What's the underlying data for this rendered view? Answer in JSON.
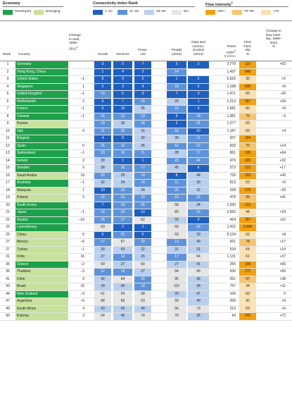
{
  "legend": {
    "economy": {
      "title": "Economy",
      "items": [
        {
          "label": "Developed",
          "color": "#1ea04b"
        },
        {
          "label": "Emerging",
          "color": "#c8e29e"
        }
      ]
    },
    "connectivity": {
      "title": "Connectivity index Rank",
      "items": [
        {
          "label": "1–10",
          "color": "#1f5fbf"
        },
        {
          "label": "11–25",
          "color": "#5f93d9"
        },
        {
          "label": "26–50",
          "color": "#b9cfee"
        },
        {
          "label": "51+",
          "color": "#e6e6e6"
        }
      ]
    },
    "intensity": {
      "title": "Flow intensity",
      "title_sup": "5",
      "items": [
        {
          "label": "100+",
          "color": "#f2a111"
        },
        {
          "label": "70–99",
          "color": "#f5c46c"
        },
        {
          "label": "<70",
          "color": "#fae2b4"
        }
      ]
    }
  },
  "headers": {
    "rank": "Rank",
    "country": "Country",
    "change": [
      "Change",
      "in rank,",
      "1995–",
      "2012",
      "1"
    ],
    "goods": "Goods",
    "services": "Services",
    "financial": [
      "Finan-",
      "cial"
    ],
    "people": [
      "People",
      "(2010)"
    ],
    "data": [
      "Data and",
      "commu-",
      "nication",
      "(2013)"
    ],
    "flows": [
      "Flows",
      "value",
      "4",
      "$ billion"
    ],
    "intensity": [
      "Flow",
      "inten-",
      "sity",
      "%"
    ],
    "intensity_change": [
      "Change in",
      "flow inten-",
      "sity, 1995–",
      "2012",
      "%"
    ]
  },
  "colors": {
    "developed": "#1ea04b",
    "emerging": "#c8e29e",
    "r1": "#1f5fbf",
    "r2": "#5f93d9",
    "r3": "#b9cfee",
    "r4": "#e6e6e6",
    "i1": "#f2a111",
    "i2": "#f5c46c",
    "i3": "#fae2b4"
  },
  "rows": [
    {
      "rank": "1",
      "country": "Germany",
      "dev": true,
      "change": "",
      "goods": "3",
      "services": "5",
      "financial": "7",
      "people": "5",
      "data": "2",
      "flows": "3,770",
      "intensity": "110",
      "ichange": "+53"
    },
    {
      "rank": "2",
      "country": "Hong Kong, China",
      "dev": true,
      "change": "",
      "goods": "1",
      "services": "4",
      "financial": "3",
      "people": "14",
      "data": "",
      "flows": "1,437",
      "intensity": "646",
      "ichange": ""
    },
    {
      "rank": "3",
      "country": "United States",
      "dev": true,
      "change": "–1",
      "goods": "8",
      "services": "9",
      "financial": "5",
      "people": "1",
      "data": "5",
      "flows": "5,622",
      "intensity": "35",
      "ichange": "+2"
    },
    {
      "rank": "4",
      "country": "Singapore",
      "dev": true,
      "change": "1",
      "goods": "2",
      "services": "3",
      "financial": "4",
      "people": "18",
      "data": "5",
      "flows": "1,198",
      "intensity": "436",
      "ichange": "+8"
    },
    {
      "rank": "5",
      "country": "United Kingdom",
      "dev": true,
      "change": "–1",
      "goods": "13",
      "services": "6",
      "financial": "9",
      "people": "7",
      "data": "3",
      "flows": "1,471",
      "intensity": "60",
      "ichange": "–26"
    },
    {
      "rank": "6",
      "country": "Netherlands",
      "dev": true,
      "change": "2",
      "goods": "6",
      "services": "7",
      "financial": "15",
      "people": "29",
      "data": "1",
      "flows": "1,213",
      "intensity": "157",
      "ichange": "+39"
    },
    {
      "rank": "7",
      "country": "France",
      "dev": true,
      "change": "–1",
      "goods": "9",
      "services": "10",
      "financial": "36",
      "people": "16",
      "data": "4",
      "flows": "1,581",
      "intensity": "60",
      "ichange": "+8"
    },
    {
      "rank": "8",
      "country": "Canada",
      "dev": true,
      "change": "–1",
      "goods": "16",
      "services": "22",
      "financial": "13",
      "people": "9",
      "data": "18",
      "flows": "1,381",
      "intensity": "76",
      "ichange": "–3"
    },
    {
      "rank": "9",
      "country": "Russia",
      "dev": false,
      "change": "",
      "goods": "19",
      "services": "30",
      "financial": "16",
      "people": "2",
      "data": "21",
      "flows": "1,277",
      "intensity": "63",
      "ichange": ""
    },
    {
      "rank": "10",
      "country": "Italy",
      "dev": true,
      "change": "0",
      "goods": "11",
      "services": "20",
      "financial": "31",
      "people": "16",
      "data": "10",
      "flows": "1,187",
      "intensity": "59",
      "ichange": "+4"
    },
    {
      "rank": "11",
      "country": "Belgium",
      "dev": true,
      "change": "",
      "goods": "4",
      "services": "8",
      "financial": "30",
      "people": "39",
      "data": "11",
      "flows": "937",
      "intensity": "194",
      "ichange": ""
    },
    {
      "rank": "12",
      "country": "Spain",
      "dev": true,
      "change": "0",
      "goods": "21",
      "services": "12",
      "financial": "35",
      "people": "12",
      "data": "12",
      "flows": "932",
      "intensity": "70",
      "ichange": "+14"
    },
    {
      "rank": "13",
      "country": "Switzerland",
      "dev": true,
      "change": "–1",
      "goods": "23",
      "services": "16",
      "financial": "11",
      "people": "28",
      "data": "17",
      "flows": "861",
      "intensity": "135",
      "ichange": "+64"
    },
    {
      "rank": "14",
      "country": "Ireland",
      "dev": true,
      "change": "2",
      "goods": "29",
      "services": "1",
      "financial": "1",
      "people": "23",
      "data": "24",
      "flows": "476",
      "intensity": "226",
      "ichange": "+32"
    },
    {
      "rank": "15",
      "country": "Sweden",
      "dev": true,
      "change": "0",
      "goods": "28",
      "services": "15",
      "financial": "17",
      "people": "45",
      "data": "6",
      "flows": "573",
      "intensity": "123",
      "ichange": "+17"
    },
    {
      "rank": "16",
      "country": "Saudi Arabia",
      "dev": false,
      "change": "19",
      "goods": "20",
      "services": "29",
      "financial": "19",
      "people": "8",
      "data": "44",
      "flows": "729",
      "intensity": "103",
      "ichange": "+40"
    },
    {
      "rank": "17",
      "country": "Australia",
      "dev": true,
      "change": "–1",
      "goods": "32",
      "services": "34",
      "financial": "14",
      "people": "11",
      "data": "30",
      "flows": "813",
      "intensity": "53",
      "ichange": "+5"
    },
    {
      "rank": "18",
      "country": "Malaysia",
      "dev": false,
      "change": "1",
      "goods": "10",
      "services": "23",
      "financial": "34",
      "people": "25",
      "data": "32",
      "flows": "528",
      "intensity": "173",
      "ichange": "–29"
    },
    {
      "rank": "19",
      "country": "Poland",
      "dev": false,
      "change": "5",
      "goods": "22",
      "services": "21",
      "financial": "23",
      "people": "19",
      "data": "22",
      "flows": "478",
      "intensity": "98",
      "ichange": "+41"
    },
    {
      "rank": "20",
      "country": "South Korea",
      "dev": true,
      "change": "",
      "goods": "7",
      "services": "14",
      "financial": "25",
      "people": "58",
      "data": "34",
      "flows": "1,393",
      "intensity": "123",
      "ichange": ""
    },
    {
      "rank": "21",
      "country": "Japan",
      "dev": true,
      "change": "–1",
      "goods": "14",
      "services": "24",
      "financial": "10",
      "people": "82",
      "data": "15",
      "flows": "2,662",
      "intensity": "44",
      "ichange": "+18"
    },
    {
      "rank": "22",
      "country": "Austria",
      "dev": true,
      "change": "–10",
      "goods": "24",
      "services": "17",
      "financial": "62",
      "people": "33",
      "data": "9",
      "flows": "424",
      "intensity": "107",
      "ichange": "+22"
    },
    {
      "rank": "23",
      "country": "Luxembourg",
      "dev": true,
      "change": "",
      "goods": "63",
      "services": "2",
      "financial": "2",
      "people": "69",
      "data": "16",
      "flows": "1,432",
      "intensity": "2,594",
      "ichange": ""
    },
    {
      "rank": "25",
      "country": "China",
      "dev": false,
      "change": "5",
      "goods": "5",
      "services": "21",
      "financial": "6",
      "people": "93",
      "data": "33",
      "flows": "5,124",
      "intensity": "62",
      "ichange": "+8"
    },
    {
      "rank": "27",
      "country": "Mexico",
      "dev": false,
      "change": "–6",
      "goods": "17",
      "services": "67",
      "financial": "22",
      "people": "13",
      "data": "49",
      "flows": "921",
      "intensity": "78",
      "ichange": "+17"
    },
    {
      "rank": "27",
      "country": "Turkey",
      "dev": false,
      "change": "–1",
      "goods": "30",
      "services": "43",
      "financial": "32",
      "people": "31",
      "data": "31",
      "flows": "524",
      "intensity": "64",
      "ichange": "+14"
    },
    {
      "rank": "31",
      "country": "India",
      "dev": false,
      "change": "16",
      "goods": "27",
      "services": "13",
      "financial": "26",
      "people": "17",
      "data": "64",
      "flows": "1,131",
      "intensity": "61",
      "ichange": "+37"
    },
    {
      "rank": "36",
      "country": "Greece",
      "dev": true,
      "change": "–2",
      "goods": "59",
      "services": "27",
      "financial": "60",
      "people": "27",
      "data": "41",
      "flows": "255",
      "intensity": "106",
      "ichange": "+66"
    },
    {
      "rank": "36",
      "country": "Thailand",
      "dev": false,
      "change": "–3",
      "goods": "12",
      "services": "19",
      "financial": "27",
      "people": "94",
      "data": "56",
      "flows": "630",
      "intensity": "172",
      "ichange": "+56"
    },
    {
      "rank": "41",
      "country": "Chile",
      "dev": false,
      "change": "9",
      "goods": "42",
      "services": "64",
      "financial": "20",
      "people": "95",
      "data": "36",
      "flows": "261",
      "intensity": "97",
      "ichange": "+38"
    },
    {
      "rank": "43",
      "country": "Brazil",
      "dev": false,
      "change": "15",
      "goods": "39",
      "services": "40",
      "financial": "18",
      "people": "116",
      "data": "38",
      "flows": "757",
      "intensity": "34",
      "ichange": "+11"
    },
    {
      "rank": "44",
      "country": "New Zealand",
      "dev": true,
      "change": "–3",
      "goods": "61",
      "services": "59",
      "financial": "58",
      "people": "26",
      "data": "47",
      "flows": "106",
      "intensity": "63",
      "ichange": "0"
    },
    {
      "rank": "47",
      "country": "Argentina",
      "dev": false,
      "change": "–6",
      "goods": "68",
      "services": "60",
      "financial": "53",
      "people": "59",
      "data": "40",
      "flows": "200",
      "intensity": "42",
      "ichange": "+9"
    },
    {
      "rank": "49",
      "country": "South Africa",
      "dev": false,
      "change": "4",
      "goods": "43",
      "services": "50",
      "financial": "49",
      "people": "56",
      "data": "73",
      "flows": "213",
      "intensity": "53",
      "ichange": "+5"
    },
    {
      "rank": "50",
      "country": "Estonia",
      "dev": false,
      "change": "3",
      "goods": "54",
      "services": "46",
      "financial": "74",
      "people": "76",
      "data": "26",
      "flows": "54",
      "intensity": "241",
      "ichange": "+72"
    }
  ]
}
